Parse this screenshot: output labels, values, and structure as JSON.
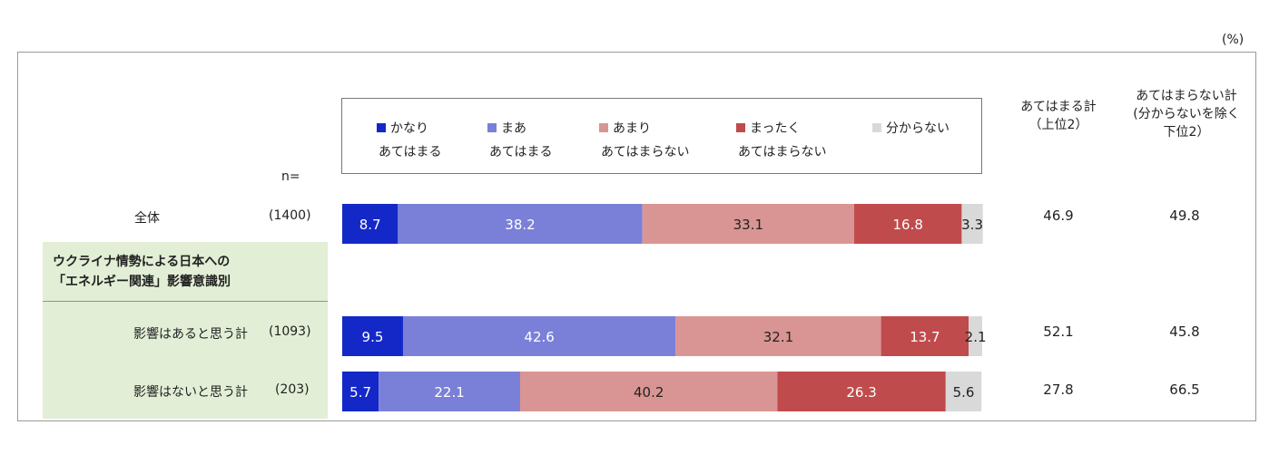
{
  "unit_label": "(%)",
  "n_label": "n=",
  "group_title_line1": "ウクライナ情勢による日本への",
  "group_title_line2": "「エネルギー関連」影響意識別",
  "summary_headers": {
    "agree": [
      "あてはまる計",
      "（上位2）"
    ],
    "disagree": [
      "あてはまらない計",
      "(分からないを除く",
      "下位2）"
    ]
  },
  "chart_data": {
    "type": "bar",
    "stacked": true,
    "orientation": "horizontal",
    "xlim": [
      0,
      100
    ],
    "categories": [
      "全体",
      "影響はあると思う計",
      "影響はないと思う計"
    ],
    "n": [
      "(1400)",
      "(1093)",
      "(203)"
    ],
    "series": [
      {
        "name": "かなり あてはまる",
        "legend_lines": [
          "かなり",
          "あてはまる"
        ],
        "color": "#1428c8",
        "values": [
          8.7,
          9.5,
          5.7
        ]
      },
      {
        "name": "まあ あてはまる",
        "legend_lines": [
          "まあ",
          "あてはまる"
        ],
        "color": "#7a80d8",
        "values": [
          38.2,
          42.6,
          22.1
        ]
      },
      {
        "name": "あまり あてはまらない",
        "legend_lines": [
          "あまり",
          "あてはまらない"
        ],
        "color": "#d99593",
        "values": [
          33.1,
          32.1,
          40.2
        ]
      },
      {
        "name": "まったく あてはまらない",
        "legend_lines": [
          "まったく",
          "あてはまらない"
        ],
        "color": "#c04b4d",
        "values": [
          16.8,
          13.7,
          26.3
        ]
      },
      {
        "name": "分からない",
        "legend_lines": [
          "分からない",
          ""
        ],
        "color": "#d9d9d9",
        "values": [
          3.3,
          2.1,
          5.6
        ]
      }
    ],
    "label_colors": [
      "#ffffff",
      "#ffffff",
      "#222222",
      "#ffffff",
      "#222222"
    ],
    "totals_agree": [
      "46.9",
      "52.1",
      "27.8"
    ],
    "totals_disagree": [
      "49.8",
      "45.8",
      "66.5"
    ]
  }
}
